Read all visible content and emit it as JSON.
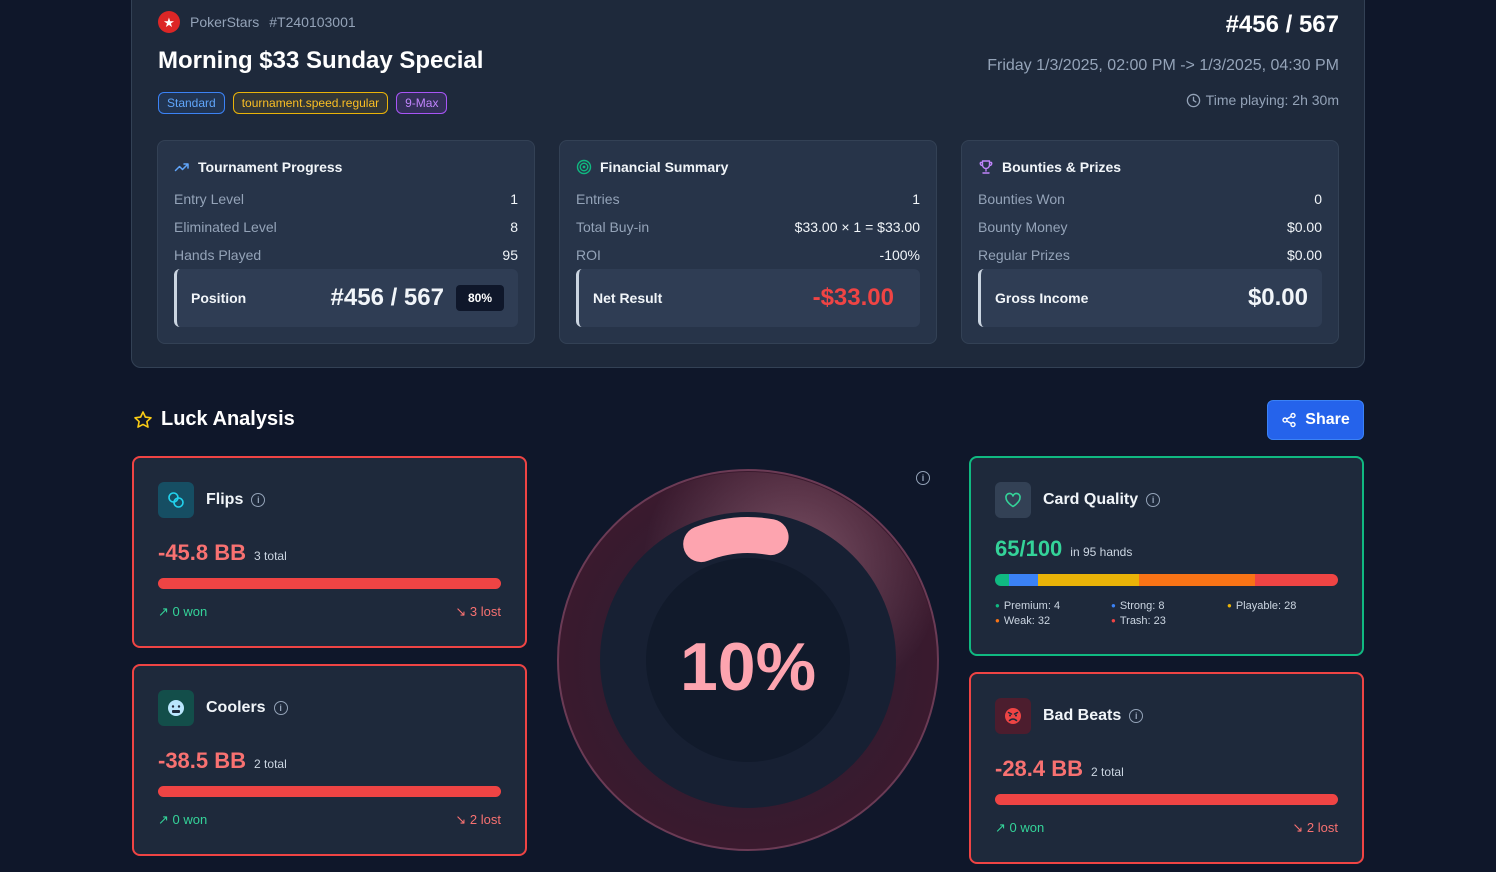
{
  "tournament": {
    "site": "PokerStars",
    "id": "#T240103001",
    "title": "Morning $33 Sunday Special",
    "tags": [
      "Standard",
      "tournament.speed.regular",
      "9-Max"
    ],
    "position_header": "#456 / 567",
    "date_range": "Friday 1/3/2025, 02:00 PM -> 1/3/2025, 04:30 PM",
    "time_playing": "Time playing: 2h 30m"
  },
  "progress": {
    "title": "Tournament Progress",
    "rows": [
      {
        "label": "Entry Level",
        "value": "1"
      },
      {
        "label": "Eliminated Level",
        "value": "8"
      },
      {
        "label": "Hands Played",
        "value": "95"
      }
    ],
    "position_label": "Position",
    "position_value": "#456 / 567",
    "position_pct": "80%"
  },
  "financial": {
    "title": "Financial Summary",
    "rows": [
      {
        "label": "Entries",
        "value": "1"
      },
      {
        "label": "Total Buy-in",
        "value": "$33.00 × 1 = $33.00"
      },
      {
        "label": "ROI",
        "value": "-100%"
      }
    ],
    "net_label": "Net Result",
    "net_value": "-$33.00"
  },
  "bounties": {
    "title": "Bounties & Prizes",
    "rows": [
      {
        "label": "Bounties Won",
        "value": "0"
      },
      {
        "label": "Bounty Money",
        "value": "$0.00"
      },
      {
        "label": "Regular Prizes",
        "value": "$0.00"
      }
    ],
    "gross_label": "Gross Income",
    "gross_value": "$0.00"
  },
  "luck": {
    "title": "Luck Analysis",
    "share_label": "Share",
    "gauge_value": "10%",
    "gauge_fraction": 0.1,
    "flips": {
      "name": "Flips",
      "value": "-45.8 BB",
      "total": "3 total",
      "won": "↗ 0 won",
      "lost": "↘ 3 lost"
    },
    "coolers": {
      "name": "Coolers",
      "value": "-38.5 BB",
      "total": "2 total",
      "won": "↗ 0 won",
      "lost": "↘ 2 lost"
    },
    "bad_beats": {
      "name": "Bad Beats",
      "value": "-28.4 BB",
      "total": "2 total",
      "won": "↗ 0 won",
      "lost": "↘ 2 lost"
    },
    "card_quality": {
      "name": "Card Quality",
      "score": "65/100",
      "hands": "in 95 hands",
      "segments": [
        {
          "label": "Premium: 4",
          "count": 4,
          "color": "#10b981"
        },
        {
          "label": "Strong: 8",
          "count": 8,
          "color": "#3b82f6"
        },
        {
          "label": "Playable: 28",
          "count": 28,
          "color": "#eab308"
        },
        {
          "label": "Weak: 32",
          "count": 32,
          "color": "#f97316"
        },
        {
          "label": "Trash: 23",
          "count": 23,
          "color": "#ef4444"
        }
      ]
    }
  },
  "colors": {
    "background": "#0f172a",
    "card": "#1e293b",
    "accent": "#2563eb",
    "negative": "#ef4444",
    "positive": "#10b981"
  }
}
